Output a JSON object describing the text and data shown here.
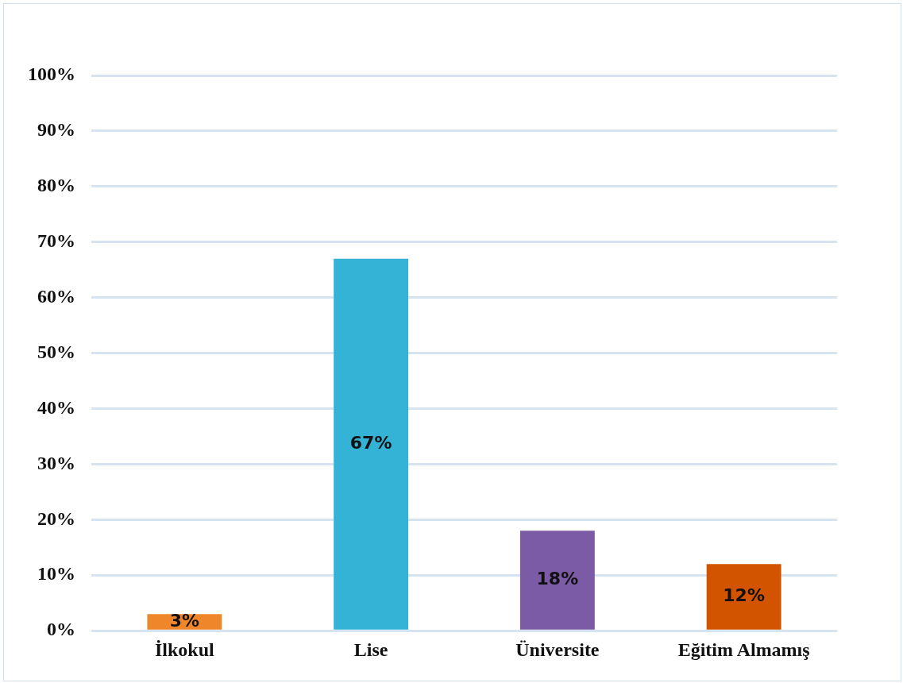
{
  "chart_data": {
    "type": "bar",
    "categories": [
      "İlkokul",
      "Lise",
      "Üniversite",
      "Eğitim Almamış"
    ],
    "values": [
      3,
      67,
      18,
      12
    ],
    "colors": [
      "#f0862a",
      "#35b3d6",
      "#7b5aa6",
      "#d35400"
    ],
    "value_labels": [
      "3%",
      "67%",
      "18%",
      "12%"
    ],
    "ylim": [
      0,
      100
    ],
    "yticks": [
      {
        "value": 0,
        "label": "0%"
      },
      {
        "value": 10,
        "label": "10%"
      },
      {
        "value": 20,
        "label": "20%"
      },
      {
        "value": 30,
        "label": "30%"
      },
      {
        "value": 40,
        "label": "40%"
      },
      {
        "value": 50,
        "label": "50%"
      },
      {
        "value": 60,
        "label": "60%"
      },
      {
        "value": 70,
        "label": "70%"
      },
      {
        "value": 80,
        "label": "80%"
      },
      {
        "value": 90,
        "label": "90%"
      },
      {
        "value": 100,
        "label": "100%"
      }
    ],
    "grid": "y"
  }
}
